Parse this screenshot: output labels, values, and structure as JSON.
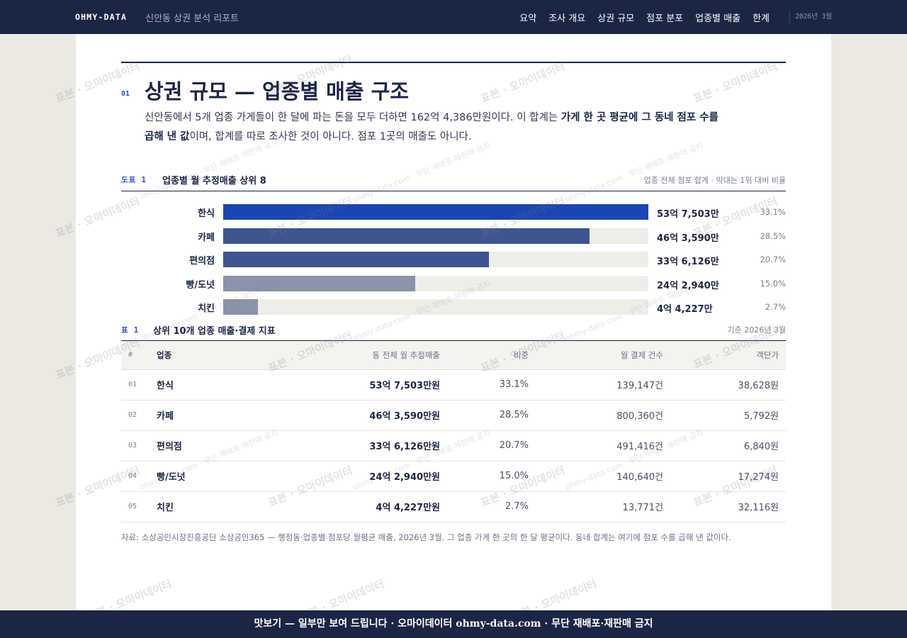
{
  "header": {
    "brand": "OHMY-DATA",
    "report_title": "신안동 상권 분석 리포트",
    "nav": [
      "요약",
      "조사 개요",
      "상권 규모",
      "점포 분포",
      "업종별 매출",
      "한계"
    ],
    "date": "2026년 3월"
  },
  "section": {
    "number": "01",
    "title": "상권 규모 — 업종별 매출 구조",
    "lead_1": "신안동에서 5개 업종 가게들이 한 달에 파는 돈을 모두 더하면 162억 4,386만원이다. 이 합계는 ",
    "lead_bold": "가게 한 곳 평균에 그 동네 점포 수를 곱해 낸 값",
    "lead_2": "이며, 합계를 따로 조사한 것이 아니다. 점포 1곳의 매출도 아니다."
  },
  "figure": {
    "tag": "도표 1",
    "title": "업종별 월 추정매출 상위 8",
    "note": "업종 전체 점포 합계 · 막대는 1위 대비 비율"
  },
  "chart_data": {
    "type": "bar",
    "orientation": "horizontal",
    "categories": [
      "한식",
      "카페",
      "편의점",
      "빵/도넛",
      "치킨"
    ],
    "values": [
      537503,
      463590,
      336126,
      242940,
      44227
    ],
    "value_unit": "만원",
    "value_labels": [
      "53억 7,503만",
      "46억 3,590만",
      "33억 6,126만",
      "24억 2,940만",
      "4억 4,227만"
    ],
    "share_labels": [
      "33.1%",
      "28.5%",
      "20.7%",
      "15.0%",
      "2.7%"
    ],
    "colors": [
      "#1c45b3",
      "#3f5590",
      "#3f5590",
      "#8a93a8",
      "#8a93a8"
    ],
    "xlim": [
      0,
      537503
    ]
  },
  "table": {
    "tag": "표 1",
    "title": "상위 10개 업종 매출·결제 지표",
    "note": "기준 2026년 3월",
    "columns": [
      "#",
      "업종",
      "동 전체 월 추정매출",
      "비중",
      "월 결제 건수",
      "객단가"
    ],
    "rows": [
      {
        "no": "01",
        "name": "한식",
        "sales": "53억 7,503만원",
        "share": "33.1%",
        "count": "139,147건",
        "price": "38,628원"
      },
      {
        "no": "02",
        "name": "카페",
        "sales": "46억 3,590만원",
        "share": "28.5%",
        "count": "800,360건",
        "price": "5,792원"
      },
      {
        "no": "03",
        "name": "편의점",
        "sales": "33억 6,126만원",
        "share": "20.7%",
        "count": "491,416건",
        "price": "6,840원"
      },
      {
        "no": "04",
        "name": "빵/도넛",
        "sales": "24억 2,940만원",
        "share": "15.0%",
        "count": "140,640건",
        "price": "17,274원"
      },
      {
        "no": "05",
        "name": "치킨",
        "sales": "4억 4,227만원",
        "share": "2.7%",
        "count": "13,771건",
        "price": "32,116원"
      }
    ]
  },
  "source": "자료: 소상공인시장진흥공단 소상공인365 — 행정동·업종별 점포당 월평균 매출, 2026년 3월. 그 업종 가게 한 곳의 한 달 평균이다. 동네 합계는 여기에 점포 수를 곱해 낸 값이다.",
  "watermark": {
    "main": "표본 · 오마이데이터",
    "alt": "ohmy-data.com · 무단 재배포·재판매 금지"
  },
  "footer": "맛보기 — 일부만 보여 드립니다 · 오마이데이터 ohmy-data.com · 무단 재배포·재판매 금지"
}
